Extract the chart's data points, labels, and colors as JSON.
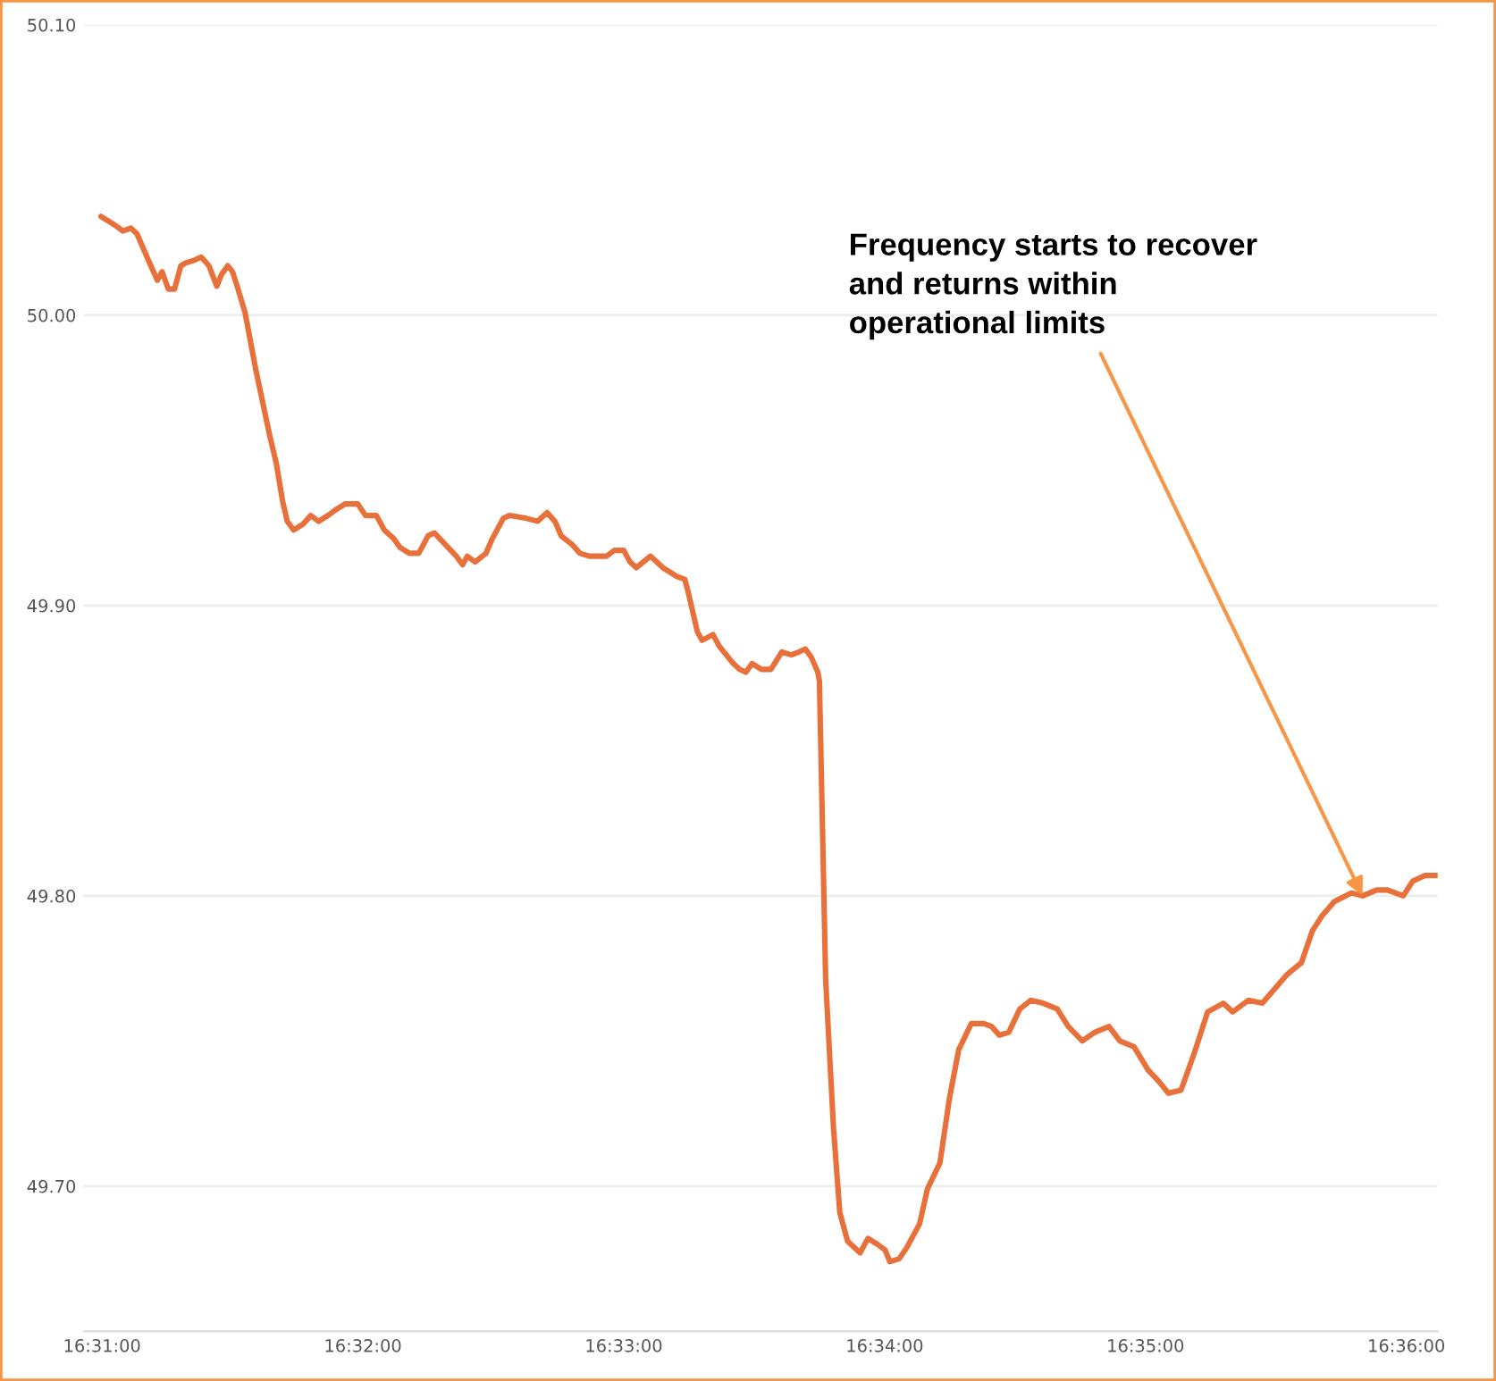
{
  "chart_data": {
    "type": "line",
    "x": [
      16.5166,
      16.5175,
      16.518,
      16.5185,
      16.5189,
      16.5197,
      16.5202,
      16.5205,
      16.5209,
      16.5213,
      16.5217,
      16.522,
      16.5226,
      16.523,
      16.5235,
      16.524,
      16.5243,
      16.5247,
      16.525,
      16.5253,
      16.5258,
      16.5265,
      16.5274,
      16.5278,
      16.5282,
      16.5285,
      16.5289,
      16.5295,
      16.53,
      16.5305,
      16.5311,
      16.5316,
      16.5322,
      16.533,
      16.5335,
      16.5342,
      16.5347,
      16.5353,
      16.5357,
      16.5363,
      16.5369,
      16.5375,
      16.5379,
      16.5386,
      16.5393,
      16.5397,
      16.54,
      16.5405,
      16.5412,
      16.5416,
      16.5423,
      16.5427,
      16.5438,
      16.5445,
      16.5451,
      16.5456,
      16.546,
      16.5467,
      16.5472,
      16.5478,
      16.5489,
      16.5494,
      16.55,
      16.5504,
      16.5508,
      16.5517,
      16.5525,
      16.5534,
      16.5539,
      16.5541,
      16.5547,
      16.555,
      16.5557,
      16.5561,
      16.557,
      16.5574,
      16.5578,
      16.5582,
      16.5588,
      16.5594,
      16.5601,
      16.5607,
      16.5612,
      16.5616,
      16.562,
      16.5624,
      16.5625,
      16.5629,
      16.5634,
      16.5638,
      16.5643,
      16.5651,
      16.5656,
      16.5662,
      16.5667,
      16.567,
      16.5676,
      16.5681,
      16.5689,
      16.5694,
      16.5702,
      16.5708,
      16.5714,
      16.5722,
      16.573,
      16.5735,
      16.574,
      16.5746,
      16.5753,
      16.576,
      16.5768,
      16.5777,
      16.5784,
      16.5793,
      16.5801,
      16.581,
      16.5817,
      16.5826,
      16.5835,
      16.5842,
      16.5848,
      16.5856,
      16.5864,
      16.5873,
      16.5883,
      16.5889,
      16.5899,
      16.5908,
      16.5916,
      16.5924,
      16.5933,
      16.594,
      16.5946,
      16.5954,
      16.5965,
      16.5972,
      16.5981,
      16.5988,
      16.5998,
      16.6004,
      16.6012,
      16.602
    ],
    "series": [
      {
        "color": "#e8703a",
        "values": [
          50.034,
          50.031,
          50.029,
          50.03,
          50.028,
          50.018,
          50.012,
          50.015,
          50.009,
          50.009,
          50.017,
          50.018,
          50.019,
          50.02,
          50.017,
          50.01,
          50.014,
          50.017,
          50.015,
          50.01,
          50.001,
          49.981,
          49.958,
          49.949,
          49.936,
          49.929,
          49.926,
          49.928,
          49.931,
          49.929,
          49.931,
          49.933,
          49.935,
          49.935,
          49.931,
          49.931,
          49.926,
          49.923,
          49.92,
          49.918,
          49.918,
          49.924,
          49.925,
          49.921,
          49.917,
          49.914,
          49.917,
          49.915,
          49.918,
          49.923,
          49.93,
          49.931,
          49.93,
          49.929,
          49.932,
          49.929,
          49.924,
          49.921,
          49.918,
          49.917,
          49.917,
          49.919,
          49.919,
          49.915,
          49.913,
          49.917,
          49.913,
          49.91,
          49.909,
          49.905,
          49.891,
          49.888,
          49.89,
          49.886,
          49.88,
          49.878,
          49.877,
          49.88,
          49.878,
          49.878,
          49.884,
          49.883,
          49.884,
          49.885,
          49.882,
          49.877,
          49.874,
          49.771,
          49.72,
          49.691,
          49.681,
          49.677,
          49.682,
          49.68,
          49.678,
          49.674,
          49.675,
          49.679,
          49.687,
          49.699,
          49.708,
          49.73,
          49.747,
          49.756,
          49.756,
          49.755,
          49.752,
          49.753,
          49.761,
          49.764,
          49.763,
          49.761,
          49.755,
          49.75,
          49.753,
          49.755,
          49.75,
          49.748,
          49.74,
          49.736,
          49.732,
          49.733,
          49.745,
          49.76,
          49.763,
          49.76,
          49.764,
          49.763,
          49.768,
          49.773,
          49.777,
          49.788,
          49.793,
          49.798,
          49.801,
          49.8,
          49.802,
          49.802,
          49.8,
          49.805,
          49.807,
          49.807
        ]
      }
    ],
    "xlim": [
      16.5155,
      16.602
    ],
    "xticks": [
      {
        "value": 16.516667,
        "label": "16:31:00"
      },
      {
        "value": 16.533333,
        "label": "16:32:00"
      },
      {
        "value": 16.55,
        "label": "16:33:00"
      },
      {
        "value": 16.566667,
        "label": "16:34:00"
      },
      {
        "value": 16.583333,
        "label": "16:35:00"
      },
      {
        "value": 16.6,
        "label": "16:36:00"
      }
    ],
    "ylim": [
      49.65,
      50.1
    ],
    "yticks": [
      {
        "value": 49.7,
        "label": "49.70"
      },
      {
        "value": 49.8,
        "label": "49.80"
      },
      {
        "value": 49.9,
        "label": "49.90"
      },
      {
        "value": 50.0,
        "label": "50.00"
      },
      {
        "value": 50.1,
        "label": "50.10"
      }
    ],
    "grid": "y",
    "annotations": [
      {
        "text": "Frequency starts to recover\nand returns within\noperational limits",
        "x": 16.5972,
        "y": 49.8
      }
    ]
  }
}
